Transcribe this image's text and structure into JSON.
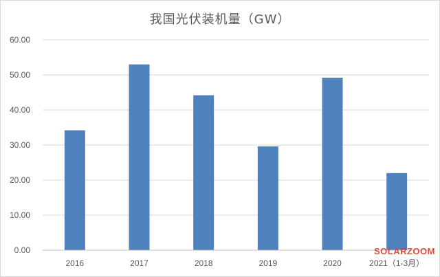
{
  "chart_data": {
    "type": "bar",
    "title": "我国光伏装机量（GW）",
    "categories": [
      "2016",
      "2017",
      "2018",
      "2019",
      "2020",
      "2021（1-3月）"
    ],
    "values": [
      34.2,
      53.0,
      44.2,
      29.6,
      49.2,
      22.0
    ],
    "ylim": [
      0,
      60
    ],
    "yticks": [
      "0.00",
      "10.00",
      "20.00",
      "30.00",
      "40.00",
      "50.00",
      "60.00"
    ],
    "ytick_values": [
      0,
      10,
      20,
      30,
      40,
      50,
      60
    ],
    "grid": true,
    "legend": "none",
    "bar_color": "#4f81bd",
    "grid_color": "#d9d9d9"
  },
  "watermark": {
    "text": "SOLARZOOM",
    "color": "#e23a2a"
  }
}
